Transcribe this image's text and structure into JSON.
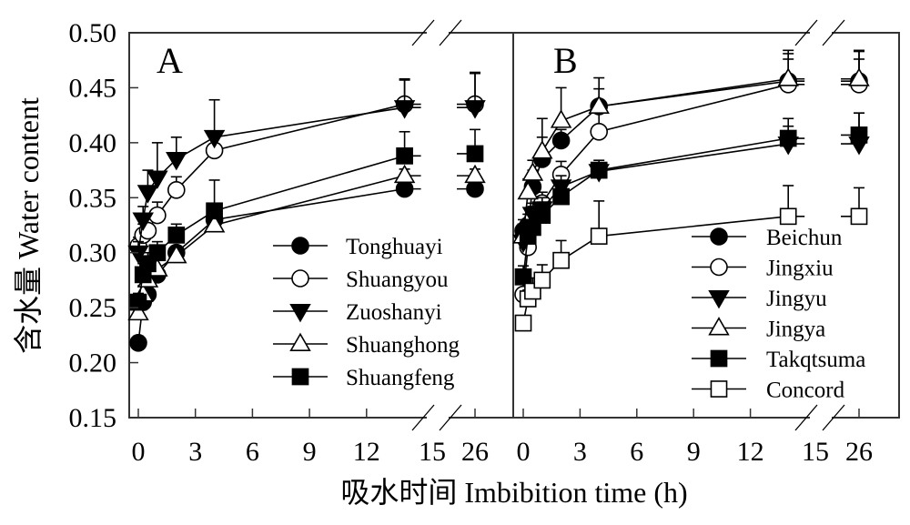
{
  "chart_data": {
    "type": "line",
    "ylabel": "含水量 Water content",
    "xlabel": "吸水时间 Imbibition time (h)",
    "ylim": [
      0.15,
      0.5
    ],
    "y_ticks": [
      "0.15",
      "0.20",
      "0.25",
      "0.30",
      "0.35",
      "0.40",
      "0.45",
      "0.50"
    ],
    "x_ticks": [
      "0",
      "3",
      "6",
      "9",
      "12",
      "15",
      "26"
    ],
    "x_axis_break": [
      15,
      26
    ],
    "grid": false,
    "panels": [
      {
        "label": "A",
        "legend_position": "center-right",
        "x": [
          0,
          0.25,
          0.5,
          1,
          2,
          4,
          14,
          26
        ],
        "series": [
          {
            "name": "Tonghuayi",
            "marker": "circle",
            "filled": true,
            "values": [
              0.218,
              0.255,
              0.262,
              0.28,
              0.3,
              0.33,
              0.358,
              0.358
            ],
            "errors": [
              0.006,
              0.006,
              0.006,
              0.006,
              0.006,
              0.006,
              0.004,
              0.004
            ]
          },
          {
            "name": "Shuangyou",
            "marker": "circle",
            "filled": false,
            "values": [
              0.306,
              0.316,
              0.32,
              0.334,
              0.357,
              0.393,
              0.435,
              0.435
            ],
            "errors": [
              0.008,
              0.01,
              0.012,
              0.012,
              0.012,
              0.006,
              0.022,
              0.028
            ]
          },
          {
            "name": "Zuoshanyi",
            "marker": "triangle-down",
            "filled": true,
            "values": [
              0.3,
              0.33,
              0.355,
              0.368,
              0.385,
              0.405,
              0.432,
              0.432
            ],
            "errors": [
              0.01,
              0.012,
              0.02,
              0.032,
              0.02,
              0.034,
              0.026,
              0.032
            ]
          },
          {
            "name": "Shuanghong",
            "marker": "triangle-up",
            "filled": false,
            "values": [
              0.245,
              0.262,
              0.275,
              0.285,
              0.297,
              0.325,
              0.37,
              0.37
            ],
            "errors": [
              0.008,
              0.008,
              0.008,
              0.008,
              0.008,
              0.006,
              0.006,
              0.006
            ]
          },
          {
            "name": "Shuangfeng",
            "marker": "square",
            "filled": true,
            "values": [
              0.255,
              0.28,
              0.29,
              0.3,
              0.316,
              0.338,
              0.388,
              0.39
            ],
            "errors": [
              0.008,
              0.01,
              0.01,
              0.01,
              0.01,
              0.028,
              0.022,
              0.022
            ]
          }
        ]
      },
      {
        "label": "B",
        "legend_position": "bottom-right",
        "x": [
          0,
          0.25,
          0.5,
          1,
          2,
          4,
          14,
          26
        ],
        "series": [
          {
            "name": "Beichun",
            "marker": "circle",
            "filled": true,
            "values": [
              0.32,
              0.325,
              0.36,
              0.385,
              0.402,
              0.433,
              0.456,
              0.456
            ],
            "errors": [
              0.01,
              0.01,
              0.015,
              0.02,
              0.01,
              0.016,
              0.02,
              0.02
            ]
          },
          {
            "name": "Jingxiu",
            "marker": "circle",
            "filled": false,
            "values": [
              0.262,
              0.305,
              0.33,
              0.345,
              0.371,
              0.41,
              0.453,
              0.453
            ],
            "errors": [
              0.01,
              0.01,
              0.012,
              0.01,
              0.012,
              0.028,
              0.028,
              0.03
            ]
          },
          {
            "name": "Jingyu",
            "marker": "triangle-down",
            "filled": true,
            "values": [
              0.31,
              0.32,
              0.335,
              0.34,
              0.36,
              0.374,
              0.399,
              0.399
            ],
            "errors": [
              0.01,
              0.01,
              0.01,
              0.01,
              0.01,
              0.01,
              0.016,
              0.028
            ]
          },
          {
            "name": "Jingya",
            "marker": "triangle-up",
            "filled": false,
            "values": [
              0.315,
              0.355,
              0.372,
              0.392,
              0.42,
              0.433,
              0.458,
              0.458
            ],
            "errors": [
              0.008,
              0.012,
              0.012,
              0.03,
              0.03,
              0.026,
              0.026,
              0.026
            ]
          },
          {
            "name": "Takqtsuma",
            "marker": "square",
            "filled": true,
            "values": [
              0.278,
              0.315,
              0.323,
              0.334,
              0.351,
              0.375,
              0.404,
              0.407
            ],
            "errors": [
              0.01,
              0.012,
              0.012,
              0.012,
              0.012,
              0.006,
              0.018,
              0.02
            ]
          },
          {
            "name": "Concord",
            "marker": "square",
            "filled": false,
            "values": [
              0.236,
              0.258,
              0.265,
              0.275,
              0.293,
              0.315,
              0.333,
              0.333
            ],
            "errors": [
              0.006,
              0.008,
              0.012,
              0.014,
              0.018,
              0.032,
              0.028,
              0.026
            ]
          }
        ]
      }
    ]
  }
}
